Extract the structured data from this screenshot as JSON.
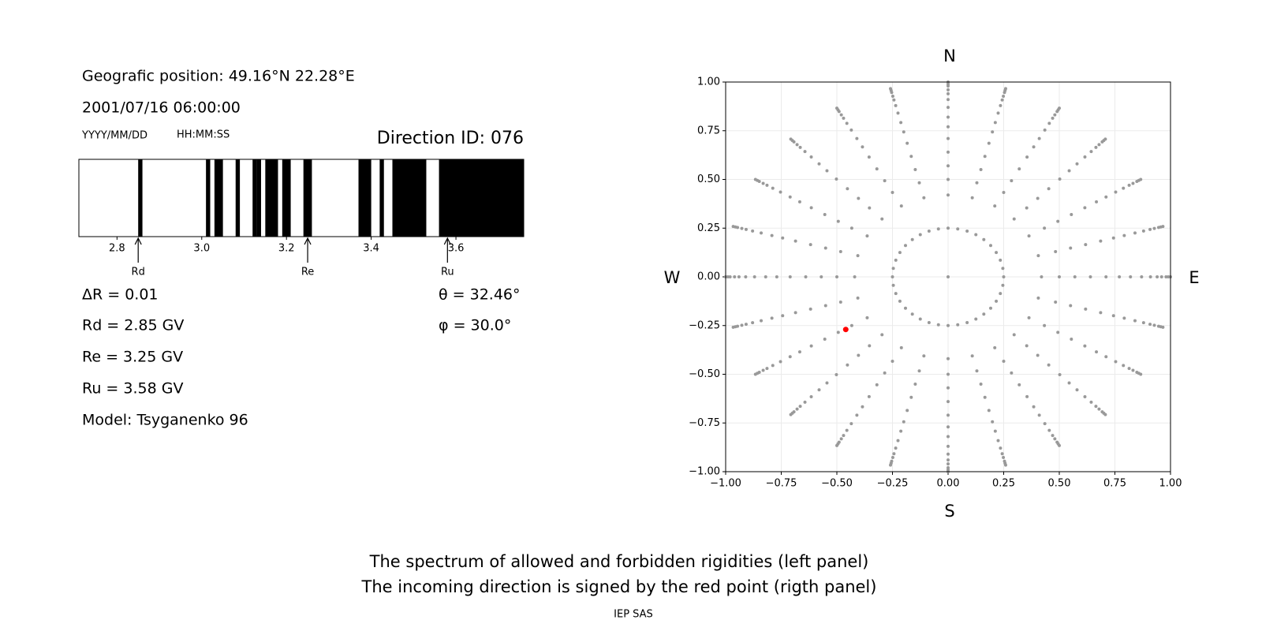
{
  "left_panel": {
    "position": "Geografic position: 49.16°N 22.28°E",
    "datetime": "2001/07/16 06:00:00",
    "date_format": "YYYY/MM/DD",
    "time_format": "HH:MM:SS",
    "direction_id": "Direction ID: 076",
    "spectrum": {
      "xlim": [
        2.71,
        3.76
      ],
      "xticks": [
        2.8,
        {
          "value": 3,
          "label": "3.0"
        },
        3.2,
        3.4,
        3.6
      ],
      "color": "#000000",
      "forbidden": [
        [
          2.85,
          2.86
        ],
        [
          3.01,
          3.02
        ],
        [
          3.03,
          3.05
        ],
        [
          3.08,
          3.09
        ],
        [
          3.12,
          3.13
        ],
        [
          3.13,
          3.14
        ],
        [
          3.15,
          3.18
        ],
        [
          3.19,
          3.21
        ],
        [
          3.24,
          3.26
        ],
        [
          3.37,
          3.4
        ],
        [
          3.42,
          3.43
        ],
        [
          3.45,
          3.53
        ],
        [
          3.56,
          3.76
        ]
      ],
      "markers": [
        {
          "label": "Rd",
          "value": 2.85
        },
        {
          "label": "Re",
          "value": 3.25
        },
        {
          "label": "Ru",
          "value": 3.58
        }
      ]
    },
    "delta_r": "ΔR = 0.01",
    "rd": "Rd = 2.85 GV",
    "re": "Re = 3.25 GV",
    "ru": "Ru = 3.58 GV",
    "model": "Model: Tsyganenko 96",
    "theta": "θ = 32.46°",
    "phi": "φ = 30.0°"
  },
  "chart_data": {
    "type": "scatter",
    "xlim": [
      -1,
      1
    ],
    "ylim": [
      -1,
      1
    ],
    "xticks": [
      {
        "value": -1,
        "label": "−1.00"
      },
      {
        "value": -0.75,
        "label": "−0.75"
      },
      {
        "value": -0.5,
        "label": "−0.50"
      },
      {
        "value": -0.25,
        "label": "−0.25"
      },
      {
        "value": 0,
        "label": "0.00"
      },
      {
        "value": 0.25,
        "label": "0.25"
      },
      {
        "value": 0.5,
        "label": "0.50"
      },
      {
        "value": 0.75,
        "label": "0.75"
      },
      {
        "value": 1,
        "label": "1.00"
      }
    ],
    "yticks": [
      {
        "value": -1,
        "label": "−1.00"
      },
      {
        "value": -0.75,
        "label": "−0.75"
      },
      {
        "value": -0.5,
        "label": "−0.50"
      },
      {
        "value": -0.25,
        "label": "−0.25"
      },
      {
        "value": 0,
        "label": "0.00"
      },
      {
        "value": 0.25,
        "label": "0.25"
      },
      {
        "value": 0.5,
        "label": "0.50"
      },
      {
        "value": 0.75,
        "label": "0.75"
      },
      {
        "value": 1,
        "label": "1.00"
      }
    ],
    "grid": true,
    "color": "#999999",
    "ray_phi": [
      0,
      15,
      30,
      45,
      60,
      75,
      90,
      105,
      120,
      135,
      150,
      165,
      180,
      195,
      210,
      225,
      240,
      255,
      270,
      285,
      300,
      315,
      330,
      345
    ],
    "ray_r": [
      0.42,
      0.5,
      0.57,
      0.64,
      0.71,
      0.77,
      0.82,
      0.87,
      0.91,
      0.94,
      0.96,
      0.98,
      0.99,
      1.0
    ],
    "circle_r": 0.25,
    "circle_phi": [
      0,
      10,
      20,
      30,
      40,
      50,
      60,
      70,
      80,
      90,
      100,
      110,
      120,
      130,
      140,
      150,
      160,
      170,
      180,
      190,
      200,
      210,
      220,
      230,
      240,
      250,
      260,
      270,
      280,
      290,
      300,
      310,
      320,
      330,
      340,
      350
    ],
    "center": {
      "x": 0,
      "y": 0
    },
    "selected": {
      "x": -0.46,
      "y": -0.27,
      "color": "#ff0000"
    },
    "compass": {
      "north": "N",
      "south": "S",
      "west": "W",
      "east": "E"
    }
  },
  "caption": [
    "The spectrum of allowed and forbidden rigidities (left panel)",
    "The incoming direction is signed by the red point (rigth panel)"
  ],
  "footer": "IEP SAS"
}
